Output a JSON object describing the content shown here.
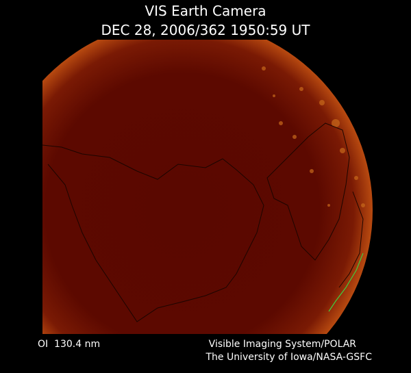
{
  "header": {
    "title": "VIS Earth Camera",
    "timestamp": "DEC 28, 2006/362 1950:59 UT"
  },
  "footer": {
    "filter": "OI  130.4 nm",
    "instrument": "Visible Imaging System/POLAR",
    "institution": "The University of Iowa/NASA-GSFC"
  }
}
